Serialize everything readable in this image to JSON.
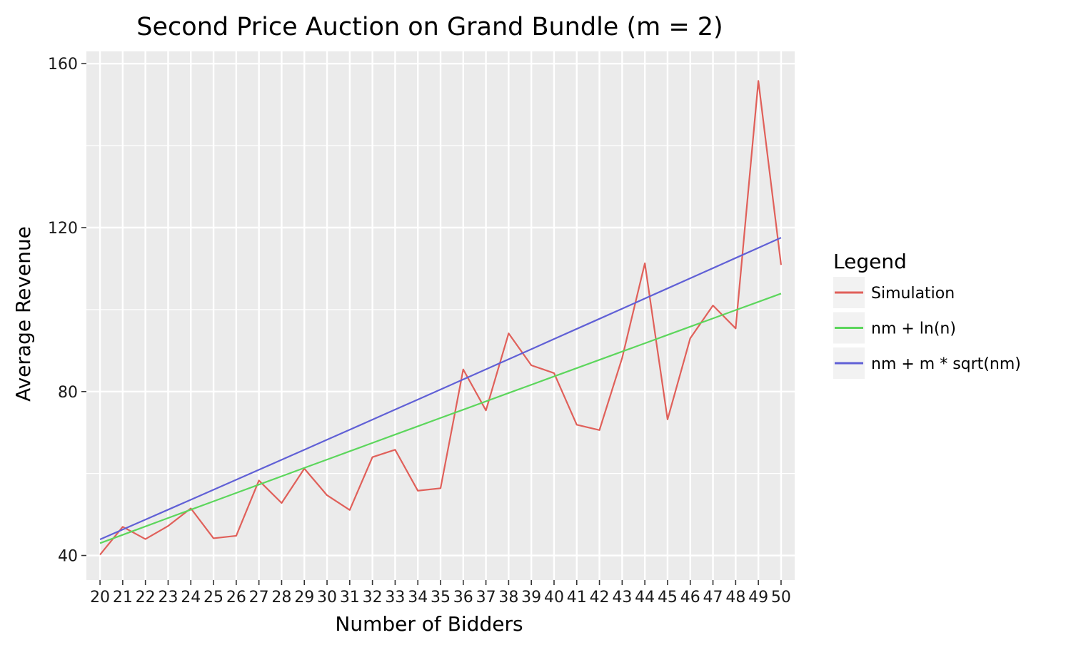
{
  "chart_data": {
    "type": "line",
    "title": "Second Price Auction on Grand Bundle (m = 2)",
    "xlabel": "Number of Bidders",
    "ylabel": "Average Revenue",
    "x": [
      20,
      21,
      22,
      23,
      24,
      25,
      26,
      27,
      28,
      29,
      30,
      31,
      32,
      33,
      34,
      35,
      36,
      37,
      38,
      39,
      40,
      41,
      42,
      43,
      44,
      45,
      46,
      47,
      48,
      49,
      50
    ],
    "xlim": [
      19.4,
      50.6
    ],
    "ylim": [
      34,
      163
    ],
    "yticks": [
      40,
      80,
      120,
      160
    ],
    "grid": true,
    "legend": {
      "title": "Legend",
      "placement": "right"
    },
    "series": [
      {
        "name": "Simulation",
        "color": "#e0605a",
        "values": [
          40.2,
          47.0,
          44.0,
          47.2,
          51.5,
          44.2,
          44.8,
          58.3,
          52.8,
          61.2,
          54.7,
          51.1,
          64.0,
          65.8,
          55.8,
          56.4,
          85.4,
          75.4,
          94.2,
          86.4,
          84.5,
          71.9,
          70.6,
          88.2,
          111.3,
          73.2,
          93.0,
          101.0,
          95.4,
          155.8,
          110.9
        ]
      },
      {
        "name": "nm + ln(n)",
        "color": "#5cd65c",
        "values": [
          43.0,
          45.04,
          47.09,
          49.14,
          51.18,
          53.22,
          55.26,
          57.3,
          59.33,
          61.37,
          63.4,
          65.43,
          67.47,
          69.5,
          71.53,
          73.56,
          75.58,
          77.61,
          79.64,
          81.66,
          83.69,
          85.71,
          87.74,
          89.76,
          91.78,
          93.81,
          95.83,
          97.85,
          99.87,
          101.89,
          103.91
        ]
      },
      {
        "name": "nm + m * sqrt(nm)",
        "color": "#6060d6",
        "values": [
          43.92,
          46.33,
          48.76,
          51.18,
          53.61,
          56.04,
          58.48,
          60.92,
          63.35,
          65.8,
          68.25,
          70.69,
          73.14,
          75.6,
          78.05,
          80.51,
          82.97,
          85.43,
          87.89,
          90.35,
          92.82,
          95.29,
          97.75,
          100.22,
          102.69,
          105.17,
          107.64,
          110.11,
          112.59,
          115.06,
          117.54
        ]
      }
    ]
  }
}
